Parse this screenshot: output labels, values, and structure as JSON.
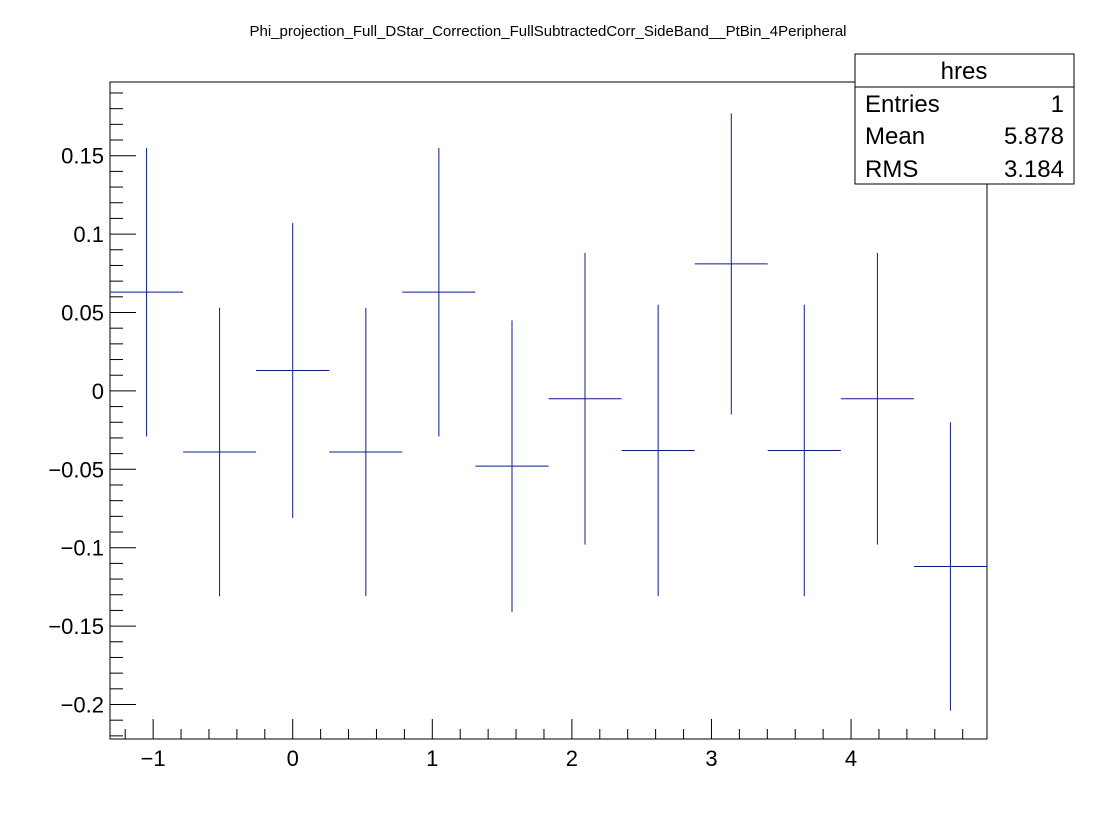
{
  "chart_data": {
    "type": "scatter",
    "title": "Phi_projection_Full_DStar_Correction_FullSubtractedCorr_SideBand__PtBin_4Peripheral",
    "xlabel": "",
    "ylabel": "",
    "xlim": [
      -1.309,
      4.974
    ],
    "ylim": [
      -0.222,
      0.197
    ],
    "x_ticks": [
      -1,
      0,
      1,
      2,
      3,
      4
    ],
    "x_tick_labels": [
      "−1",
      "0",
      "1",
      "2",
      "3",
      "4"
    ],
    "y_ticks": [
      -0.2,
      -0.15,
      -0.1,
      -0.05,
      0,
      0.05,
      0.1,
      0.15
    ],
    "y_tick_labels": [
      "−0.2",
      "−0.15",
      "−0.1",
      "−0.05",
      "0",
      "0.05",
      "0.1",
      "0.15"
    ],
    "marker_color": "#0c1c8c",
    "grid": false,
    "series": [
      {
        "x": [
          -1.047,
          -0.524,
          0.0,
          0.524,
          1.047,
          1.571,
          2.094,
          2.618,
          3.142,
          3.665,
          4.189,
          4.712
        ],
        "x_low": [
          -1.309,
          -0.785,
          -0.262,
          0.262,
          0.785,
          1.309,
          1.833,
          2.356,
          2.88,
          3.403,
          3.927,
          4.451
        ],
        "x_high": [
          -0.785,
          -0.262,
          0.262,
          0.785,
          1.309,
          1.833,
          2.356,
          2.88,
          3.403,
          3.927,
          4.451,
          4.974
        ],
        "y": [
          0.063,
          -0.039,
          0.013,
          -0.039,
          0.063,
          -0.048,
          -0.005,
          -0.038,
          0.081,
          -0.038,
          -0.005,
          -0.112
        ],
        "y_err": [
          0.092,
          0.092,
          0.094,
          0.092,
          0.092,
          0.093,
          0.093,
          0.093,
          0.096,
          0.093,
          0.093,
          0.092
        ]
      }
    ]
  },
  "stats_box": {
    "name": "hres",
    "rows": [
      {
        "label": "Entries",
        "value": "1"
      },
      {
        "label": "Mean",
        "value": "5.878"
      },
      {
        "label": "RMS",
        "value": "3.184"
      }
    ]
  }
}
